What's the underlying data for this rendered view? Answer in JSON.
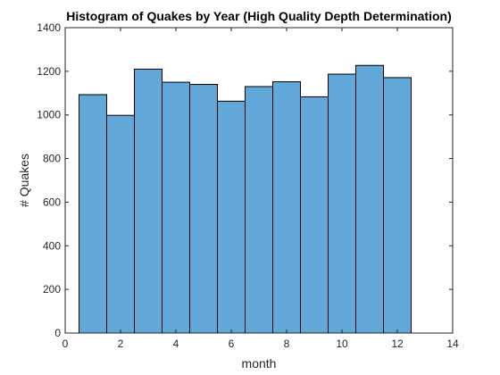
{
  "chart_data": {
    "type": "bar",
    "title": "Histogram of Quakes by Year (High Quality Depth Determination)",
    "xlabel": "month",
    "ylabel": "# Quakes",
    "xlim": [
      0,
      14
    ],
    "ylim": [
      0,
      1400
    ],
    "xticks": [
      0,
      2,
      4,
      6,
      8,
      10,
      12,
      14
    ],
    "yticks": [
      0,
      200,
      400,
      600,
      800,
      1000,
      1200,
      1400
    ],
    "categories": [
      1,
      2,
      3,
      4,
      5,
      6,
      7,
      8,
      9,
      10,
      11,
      12
    ],
    "bin_edges": [
      0.5,
      1.5,
      2.5,
      3.5,
      4.5,
      5.5,
      6.5,
      7.5,
      8.5,
      9.5,
      10.5,
      11.5,
      12.5
    ],
    "values": [
      1093,
      998,
      1210,
      1150,
      1140,
      1063,
      1130,
      1152,
      1083,
      1187,
      1227,
      1171
    ],
    "bar_color": "#61a8d8",
    "edge_color": "#000000",
    "grid": false,
    "legend": "none"
  }
}
